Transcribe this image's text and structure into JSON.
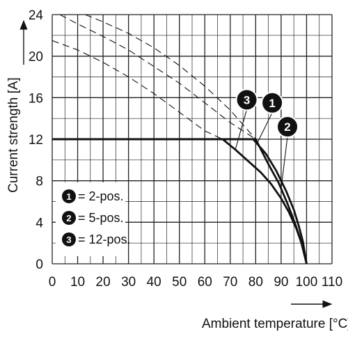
{
  "chart_data": {
    "type": "line",
    "xlabel": "Ambient temperature [°C]",
    "ylabel": "Current strength [A]",
    "xlim": [
      0,
      110
    ],
    "ylim": [
      0,
      24
    ],
    "x_ticks": [
      "0",
      "10",
      "20",
      "30",
      "40",
      "50",
      "60",
      "70",
      "80",
      "90",
      "100",
      "110"
    ],
    "y_ticks": [
      "0",
      "4",
      "8",
      "12",
      "16",
      "20",
      "24"
    ],
    "grid": true,
    "legend_position": "bottom-left",
    "legend": [
      {
        "badge": "1",
        "label": "= 2-pos."
      },
      {
        "badge": "2",
        "label": "= 5-pos."
      },
      {
        "badge": "3",
        "label": "= 12-pos."
      }
    ],
    "series": [
      {
        "badge": "1",
        "style": "solid",
        "x": [
          0,
          79,
          84,
          88,
          92,
          95,
          97,
          98.5,
          100
        ],
        "y": [
          12,
          12,
          10.6,
          9,
          7,
          5.2,
          3.6,
          2.2,
          0
        ]
      },
      {
        "badge": "2",
        "style": "solid",
        "x": [
          0,
          80,
          85,
          89,
          92.5,
          95,
          97,
          98.5,
          100
        ],
        "y": [
          12,
          12,
          9.6,
          7.8,
          5.8,
          4.2,
          2.8,
          1.6,
          0
        ]
      },
      {
        "badge": "3",
        "style": "solid",
        "x": [
          0,
          67,
          72,
          77,
          82,
          86,
          90,
          93,
          96,
          98,
          100
        ],
        "y": [
          12,
          12,
          11,
          9.9,
          8.8,
          7.7,
          6.3,
          5,
          3.4,
          2,
          0
        ]
      },
      {
        "badge": "1",
        "style": "dashed",
        "x": [
          3,
          10,
          20,
          30,
          40,
          50,
          60,
          70,
          80
        ],
        "y": [
          24,
          23.1,
          21.9,
          20.6,
          19,
          17.4,
          15.5,
          13.6,
          12
        ]
      },
      {
        "badge": "2",
        "style": "dashed",
        "x": [
          13,
          20,
          30,
          40,
          50,
          60,
          70,
          80
        ],
        "y": [
          24,
          23.3,
          22.2,
          20.8,
          19.1,
          17.1,
          14.8,
          12
        ]
      },
      {
        "badge": "3",
        "style": "dashed",
        "x": [
          0,
          10,
          20,
          30,
          40,
          50,
          60,
          67
        ],
        "y": [
          21.5,
          20.6,
          19.4,
          18,
          16.4,
          14.6,
          12.8,
          12
        ]
      }
    ],
    "badges": [
      {
        "label": "3",
        "x": 76.5,
        "y": 15.8
      },
      {
        "label": "1",
        "x": 86.5,
        "y": 15.5
      },
      {
        "label": "2",
        "x": 92.5,
        "y": 13.2
      }
    ]
  }
}
